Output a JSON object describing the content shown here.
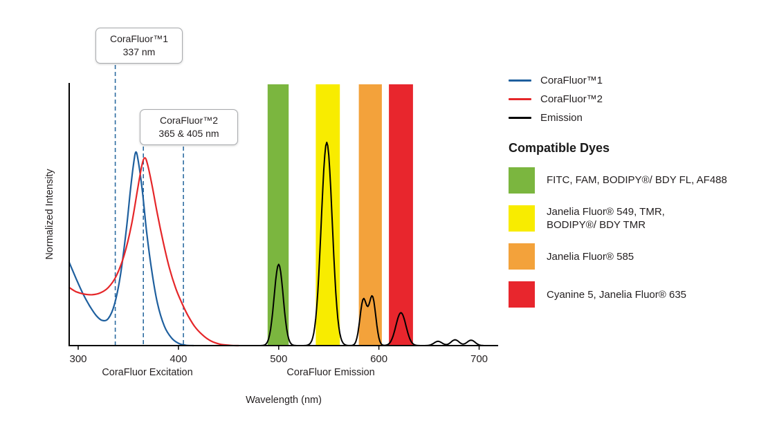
{
  "chart_data": {
    "type": "line",
    "title": "",
    "xlabel": "Wavelength (nm)",
    "ylabel": "Normalized Intensity",
    "x_ticks": [
      300,
      400,
      500,
      600,
      700
    ],
    "x_axis_range_nm": [
      291,
      719
    ],
    "y_range": [
      0,
      1.2
    ],
    "grid": false,
    "annotation_line_color": "#2c6ba0",
    "region_labels": [
      {
        "label": "CoraFluor Excitation",
        "center_nm": 369
      },
      {
        "label": "CoraFluor Emission",
        "center_nm": 552
      }
    ],
    "excitation_annotations": [
      {
        "label_line1": "CoraFluor™1",
        "label_line2": "337 nm",
        "lines_nm": [
          337
        ]
      },
      {
        "label_line1": "CoraFluor™2",
        "label_line2": "365 & 405 nm",
        "lines_nm": [
          365,
          405
        ]
      }
    ],
    "filter_bands": [
      {
        "name": "green",
        "color": "#7bb63f",
        "nm": [
          489,
          510
        ]
      },
      {
        "name": "yellow",
        "color": "#f8ec00",
        "nm": [
          537,
          561
        ]
      },
      {
        "name": "orange",
        "color": "#f3a23b",
        "nm": [
          580,
          603
        ]
      },
      {
        "name": "red",
        "color": "#e8262d",
        "nm": [
          610,
          634
        ]
      }
    ],
    "series": [
      {
        "name": "CoraFluor™1",
        "color": "#1e5f9e",
        "kind": "points",
        "points": [
          [
            291,
            0.43
          ],
          [
            298,
            0.345
          ],
          [
            305,
            0.265
          ],
          [
            312,
            0.2
          ],
          [
            318,
            0.155
          ],
          [
            324,
            0.13
          ],
          [
            330,
            0.14
          ],
          [
            336,
            0.21
          ],
          [
            342,
            0.36
          ],
          [
            348,
            0.6
          ],
          [
            352,
            0.8
          ],
          [
            355,
            0.93
          ],
          [
            357.5,
            1.0
          ],
          [
            360,
            0.95
          ],
          [
            364,
            0.8
          ],
          [
            368,
            0.6
          ],
          [
            373,
            0.4
          ],
          [
            379,
            0.22
          ],
          [
            386,
            0.1
          ],
          [
            393,
            0.04
          ],
          [
            400,
            0.012
          ],
          [
            407,
            0.002
          ],
          [
            415,
            0
          ]
        ]
      },
      {
        "name": "CoraFluor™2",
        "color": "#e52629",
        "kind": "points",
        "points": [
          [
            291,
            0.3
          ],
          [
            298,
            0.278
          ],
          [
            306,
            0.266
          ],
          [
            314,
            0.263
          ],
          [
            322,
            0.272
          ],
          [
            330,
            0.3
          ],
          [
            338,
            0.36
          ],
          [
            346,
            0.47
          ],
          [
            353,
            0.62
          ],
          [
            359,
            0.8
          ],
          [
            363.5,
            0.93
          ],
          [
            366.5,
            0.97
          ],
          [
            369.5,
            0.93
          ],
          [
            374,
            0.82
          ],
          [
            379,
            0.68
          ],
          [
            385,
            0.53
          ],
          [
            391,
            0.4
          ],
          [
            397,
            0.3
          ],
          [
            403,
            0.225
          ],
          [
            409,
            0.16
          ],
          [
            416,
            0.1
          ],
          [
            424,
            0.055
          ],
          [
            432,
            0.025
          ],
          [
            441,
            0.008
          ],
          [
            452,
            0.001
          ],
          [
            460,
            0
          ]
        ]
      },
      {
        "name": "Emission",
        "color": "#000000",
        "kind": "gaussians",
        "sample_range_nm": [
          468,
          717
        ],
        "peaks": [
          {
            "center": 500,
            "amp": 0.42,
            "sigma": 4.5
          },
          {
            "center": 548,
            "amp": 1.05,
            "sigma": 5.5
          },
          {
            "center": 584.5,
            "amp": 0.235,
            "sigma": 3.4
          },
          {
            "center": 593.5,
            "amp": 0.25,
            "sigma": 3.4
          },
          {
            "center": 622,
            "amp": 0.17,
            "sigma": 5
          },
          {
            "center": 659,
            "amp": 0.022,
            "sigma": 4
          },
          {
            "center": 676,
            "amp": 0.03,
            "sigma": 4
          },
          {
            "center": 692,
            "amp": 0.028,
            "sigma": 4
          }
        ]
      }
    ]
  },
  "legend": {
    "entries": [
      {
        "label": "CoraFluor™1",
        "color": "#1e5f9e"
      },
      {
        "label": "CoraFluor™2",
        "color": "#e52629"
      },
      {
        "label": "Emission",
        "color": "#000000"
      }
    ],
    "dyes_heading": "Compatible Dyes",
    "dyes": [
      {
        "color": "#7bb63f",
        "label": "FITC, FAM, BODIPY®/ BDY FL, AF488"
      },
      {
        "color": "#f8ec00",
        "label": "Janelia Fluor® 549, TMR,\nBODIPY®/ BDY TMR"
      },
      {
        "color": "#f3a23b",
        "label": "Janelia Fluor® 585"
      },
      {
        "color": "#e8262d",
        "label": "Cyanine 5, Janelia Fluor® 635"
      }
    ]
  }
}
